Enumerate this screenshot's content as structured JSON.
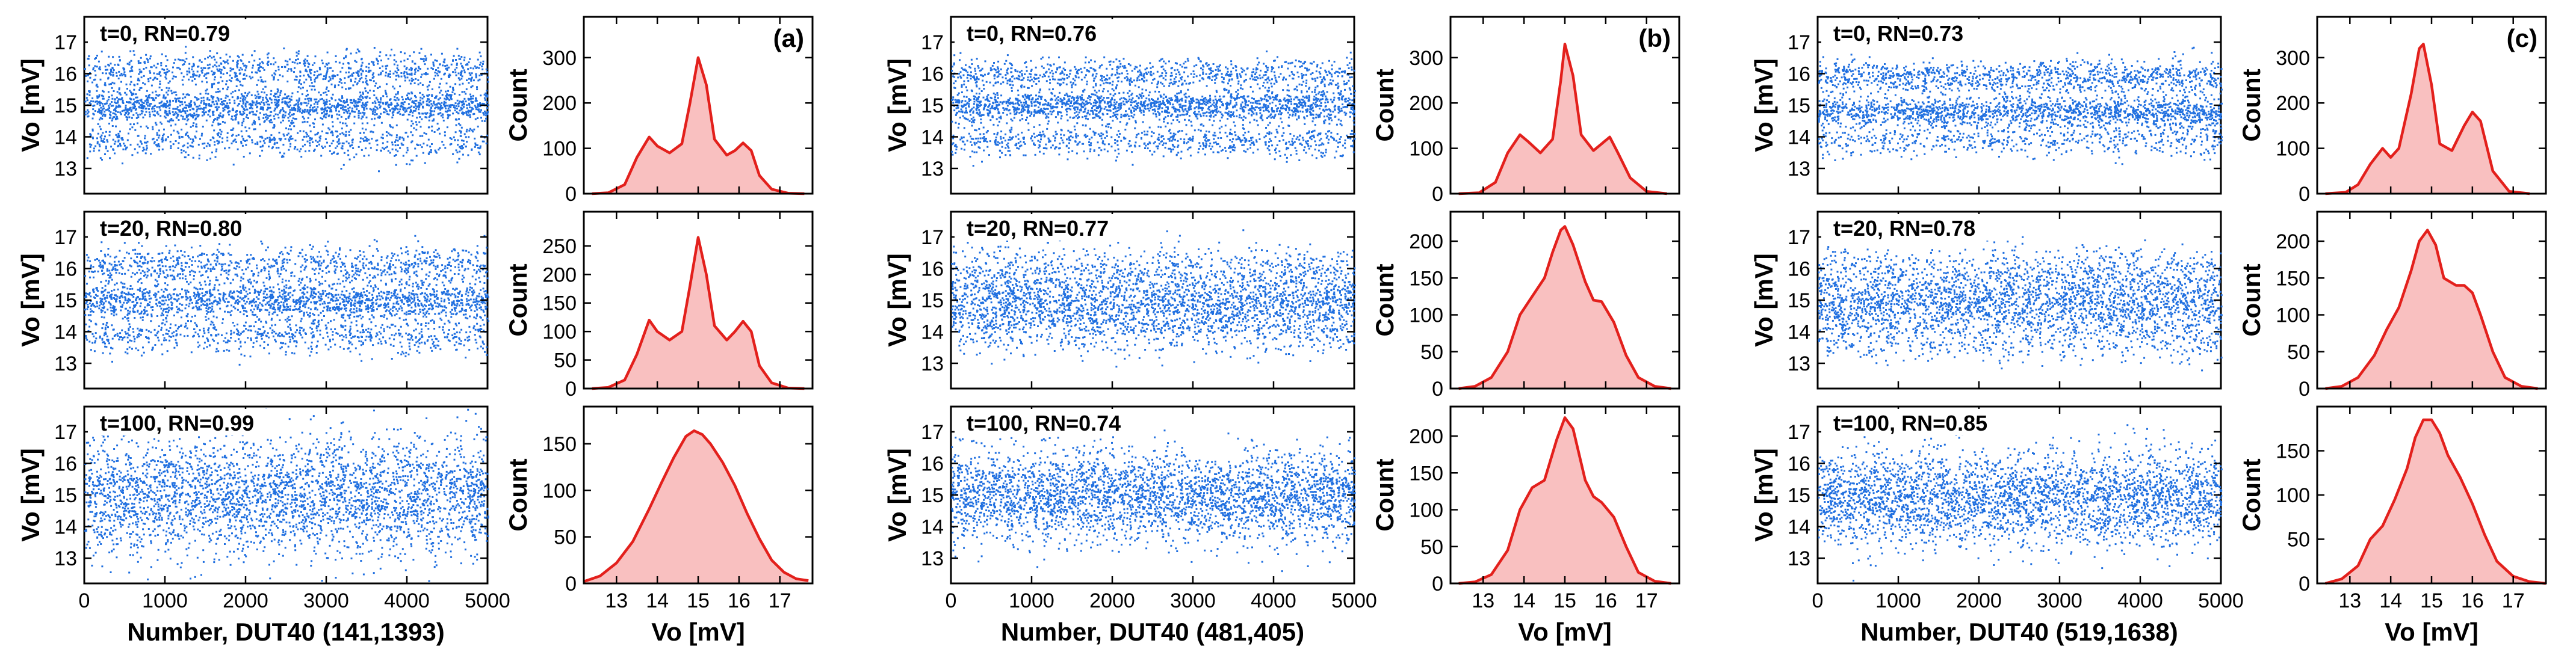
{
  "figure": {
    "groups": [
      {
        "panel_label": "(a)",
        "device_label": "Number, DUT40 (141,1393)"
      },
      {
        "panel_label": "(b)",
        "device_label": "Number, DUT40 (481,405)"
      },
      {
        "panel_label": "(c)",
        "device_label": "Number, DUT40 (519,1638)"
      }
    ],
    "scatter_ylabel": "Vo [mV]",
    "hist_ylabel": "Count",
    "hist_xlabel": "Vo [mV]",
    "colors": {
      "scatter": "#1f6fe0",
      "hist_line": "#e3201c",
      "hist_fill": "#f9c0c0"
    }
  },
  "chart_data": [
    {
      "type": "scatter",
      "group": 0,
      "row": 0,
      "annotation": "t=0, RN=0.79",
      "x_range": [
        0,
        5000
      ],
      "ylim": [
        12.2,
        17.8
      ],
      "y_ticks": [
        13,
        14,
        15,
        16,
        17
      ],
      "x_ticks": [
        0,
        1000,
        2000,
        3000,
        4000,
        5000
      ],
      "levels": [
        13.9,
        15.0,
        16.1
      ],
      "weights": [
        0.22,
        0.5,
        0.28
      ],
      "spread": [
        0.28,
        0.28,
        0.28
      ]
    },
    {
      "type": "scatter",
      "group": 0,
      "row": 1,
      "annotation": "t=20, RN=0.80",
      "x_range": [
        0,
        5000
      ],
      "ylim": [
        12.2,
        17.8
      ],
      "y_ticks": [
        13,
        14,
        15,
        16,
        17
      ],
      "x_ticks": [
        0,
        1000,
        2000,
        3000,
        4000,
        5000
      ],
      "levels": [
        13.9,
        15.0,
        16.1
      ],
      "weights": [
        0.23,
        0.5,
        0.27
      ],
      "spread": [
        0.3,
        0.3,
        0.3
      ]
    },
    {
      "type": "scatter",
      "group": 0,
      "row": 2,
      "annotation": "t=100, RN=0.99",
      "x_range": [
        0,
        5000
      ],
      "ylim": [
        12.2,
        17.8
      ],
      "y_ticks": [
        13,
        14,
        15,
        16,
        17
      ],
      "x_ticks": [
        0,
        1000,
        2000,
        3000,
        4000,
        5000
      ],
      "levels": [
        15.0
      ],
      "weights": [
        1.0
      ],
      "spread": [
        0.95
      ]
    },
    {
      "type": "area",
      "group": 0,
      "row": 0,
      "xlim": [
        12.2,
        17.8
      ],
      "x_ticks": [
        13,
        14,
        15,
        16,
        17
      ],
      "ylim": [
        0,
        390
      ],
      "y_ticks": [
        0,
        100,
        200,
        300
      ],
      "x": [
        12.4,
        12.8,
        13.2,
        13.5,
        13.8,
        14.0,
        14.3,
        14.6,
        14.8,
        15.0,
        15.2,
        15.4,
        15.7,
        15.9,
        16.1,
        16.3,
        16.5,
        16.8,
        17.2,
        17.6
      ],
      "y": [
        0,
        2,
        20,
        80,
        125,
        105,
        90,
        110,
        200,
        300,
        240,
        120,
        85,
        95,
        112,
        95,
        40,
        10,
        1,
        0
      ]
    },
    {
      "type": "area",
      "group": 0,
      "row": 1,
      "xlim": [
        12.2,
        17.8
      ],
      "x_ticks": [
        13,
        14,
        15,
        16,
        17
      ],
      "ylim": [
        0,
        310
      ],
      "y_ticks": [
        0,
        50,
        100,
        150,
        200,
        250
      ],
      "x": [
        12.4,
        12.8,
        13.2,
        13.5,
        13.8,
        14.0,
        14.3,
        14.6,
        14.8,
        15.0,
        15.2,
        15.4,
        15.7,
        15.9,
        16.1,
        16.3,
        16.5,
        16.8,
        17.2,
        17.6
      ],
      "y": [
        0,
        2,
        15,
        60,
        120,
        100,
        85,
        100,
        180,
        265,
        200,
        110,
        85,
        100,
        118,
        100,
        40,
        10,
        1,
        0
      ]
    },
    {
      "type": "area",
      "group": 0,
      "row": 2,
      "xlim": [
        12.2,
        17.8
      ],
      "x_ticks": [
        13,
        14,
        15,
        16,
        17
      ],
      "ylim": [
        0,
        190
      ],
      "y_ticks": [
        0,
        50,
        100,
        150
      ],
      "x": [
        12.2,
        12.6,
        13.0,
        13.4,
        13.8,
        14.1,
        14.4,
        14.7,
        14.9,
        15.1,
        15.3,
        15.6,
        15.9,
        16.2,
        16.5,
        16.8,
        17.1,
        17.4,
        17.7
      ],
      "y": [
        2,
        8,
        22,
        45,
        80,
        108,
        135,
        158,
        164,
        160,
        150,
        130,
        105,
        75,
        48,
        25,
        12,
        5,
        3
      ]
    },
    {
      "type": "scatter",
      "group": 1,
      "row": 0,
      "annotation": "t=0, RN=0.76",
      "x_range": [
        0,
        5000
      ],
      "ylim": [
        12.2,
        17.8
      ],
      "y_ticks": [
        13,
        14,
        15,
        16,
        17
      ],
      "x_ticks": [
        0,
        1000,
        2000,
        3000,
        4000,
        5000
      ],
      "levels": [
        13.9,
        15.0,
        16.0
      ],
      "weights": [
        0.23,
        0.52,
        0.25
      ],
      "spread": [
        0.25,
        0.25,
        0.25
      ]
    },
    {
      "type": "scatter",
      "group": 1,
      "row": 1,
      "annotation": "t=20, RN=0.77",
      "x_range": [
        0,
        5000
      ],
      "ylim": [
        12.2,
        17.8
      ],
      "y_ticks": [
        13,
        14,
        15,
        16,
        17
      ],
      "x_ticks": [
        0,
        1000,
        2000,
        3000,
        4000,
        5000
      ],
      "levels": [
        14.2,
        15.0,
        15.9
      ],
      "weights": [
        0.3,
        0.45,
        0.25
      ],
      "spread": [
        0.45,
        0.4,
        0.45
      ]
    },
    {
      "type": "scatter",
      "group": 1,
      "row": 2,
      "annotation": "t=100, RN=0.74",
      "x_range": [
        0,
        5000
      ],
      "ylim": [
        12.2,
        17.8
      ],
      "y_ticks": [
        13,
        14,
        15,
        16,
        17
      ],
      "x_ticks": [
        0,
        1000,
        2000,
        3000,
        4000,
        5000
      ],
      "levels": [
        15.0
      ],
      "weights": [
        1.0
      ],
      "spread": [
        0.7
      ]
    },
    {
      "type": "area",
      "group": 1,
      "row": 0,
      "xlim": [
        12.2,
        17.8
      ],
      "x_ticks": [
        13,
        14,
        15,
        16,
        17
      ],
      "ylim": [
        0,
        390
      ],
      "y_ticks": [
        0,
        100,
        200,
        300
      ],
      "x": [
        12.4,
        12.9,
        13.3,
        13.6,
        13.9,
        14.1,
        14.4,
        14.7,
        14.9,
        15.0,
        15.2,
        15.4,
        15.7,
        15.9,
        16.1,
        16.3,
        16.6,
        17.0,
        17.5
      ],
      "y": [
        0,
        2,
        25,
        90,
        130,
        115,
        90,
        120,
        250,
        330,
        260,
        130,
        95,
        110,
        125,
        90,
        35,
        5,
        0
      ]
    },
    {
      "type": "area",
      "group": 1,
      "row": 1,
      "xlim": [
        12.2,
        17.8
      ],
      "x_ticks": [
        13,
        14,
        15,
        16,
        17
      ],
      "ylim": [
        0,
        240
      ],
      "y_ticks": [
        0,
        50,
        100,
        150,
        200
      ],
      "x": [
        12.4,
        12.8,
        13.2,
        13.6,
        13.9,
        14.2,
        14.5,
        14.7,
        14.9,
        15.0,
        15.2,
        15.5,
        15.7,
        15.9,
        16.2,
        16.5,
        16.8,
        17.2,
        17.6
      ],
      "y": [
        0,
        3,
        15,
        50,
        100,
        125,
        150,
        185,
        215,
        220,
        195,
        145,
        120,
        118,
        90,
        45,
        15,
        3,
        0
      ]
    },
    {
      "type": "area",
      "group": 1,
      "row": 2,
      "xlim": [
        12.2,
        17.8
      ],
      "x_ticks": [
        13,
        14,
        15,
        16,
        17
      ],
      "ylim": [
        0,
        240
      ],
      "y_ticks": [
        0,
        50,
        100,
        150,
        200
      ],
      "x": [
        12.4,
        12.8,
        13.2,
        13.6,
        13.9,
        14.2,
        14.5,
        14.8,
        15.0,
        15.2,
        15.5,
        15.7,
        15.9,
        16.2,
        16.5,
        16.8,
        17.2,
        17.6
      ],
      "y": [
        0,
        2,
        12,
        45,
        100,
        130,
        140,
        195,
        225,
        210,
        140,
        118,
        110,
        90,
        50,
        15,
        3,
        0
      ]
    },
    {
      "type": "scatter",
      "group": 2,
      "row": 0,
      "annotation": "t=0, RN=0.73",
      "x_range": [
        0,
        5000
      ],
      "ylim": [
        12.2,
        17.8
      ],
      "y_ticks": [
        13,
        14,
        15,
        16,
        17
      ],
      "x_ticks": [
        0,
        1000,
        2000,
        3000,
        4000,
        5000
      ],
      "levels": [
        13.9,
        14.8,
        15.9
      ],
      "weights": [
        0.17,
        0.5,
        0.33
      ],
      "spread": [
        0.25,
        0.25,
        0.25
      ]
    },
    {
      "type": "scatter",
      "group": 2,
      "row": 1,
      "annotation": "t=20, RN=0.78",
      "x_range": [
        0,
        5000
      ],
      "ylim": [
        12.2,
        17.8
      ],
      "y_ticks": [
        13,
        14,
        15,
        16,
        17
      ],
      "x_ticks": [
        0,
        1000,
        2000,
        3000,
        4000,
        5000
      ],
      "levels": [
        14.0,
        14.9,
        15.8
      ],
      "weights": [
        0.25,
        0.45,
        0.3
      ],
      "spread": [
        0.45,
        0.4,
        0.45
      ]
    },
    {
      "type": "scatter",
      "group": 2,
      "row": 2,
      "annotation": "t=100, RN=0.85",
      "x_range": [
        0,
        5000
      ],
      "ylim": [
        12.2,
        17.8
      ],
      "y_ticks": [
        13,
        14,
        15,
        16,
        17
      ],
      "x_ticks": [
        0,
        1000,
        2000,
        3000,
        4000,
        5000
      ],
      "levels": [
        14.9
      ],
      "weights": [
        1.0
      ],
      "spread": [
        0.72
      ]
    },
    {
      "type": "area",
      "group": 2,
      "row": 0,
      "xlim": [
        12.2,
        17.8
      ],
      "x_ticks": [
        13,
        14,
        15,
        16,
        17
      ],
      "ylim": [
        0,
        390
      ],
      "y_ticks": [
        0,
        100,
        200,
        300
      ],
      "x": [
        12.4,
        12.9,
        13.2,
        13.5,
        13.8,
        14.0,
        14.2,
        14.5,
        14.7,
        14.8,
        15.0,
        15.2,
        15.5,
        15.8,
        16.0,
        16.2,
        16.5,
        16.9,
        17.4
      ],
      "y": [
        0,
        3,
        20,
        65,
        100,
        80,
        100,
        220,
        320,
        330,
        240,
        110,
        95,
        150,
        180,
        160,
        50,
        5,
        0
      ]
    },
    {
      "type": "area",
      "group": 2,
      "row": 1,
      "xlim": [
        12.2,
        17.8
      ],
      "x_ticks": [
        13,
        14,
        15,
        16,
        17
      ],
      "ylim": [
        0,
        240
      ],
      "y_ticks": [
        0,
        50,
        100,
        150,
        200
      ],
      "x": [
        12.4,
        12.8,
        13.2,
        13.6,
        13.9,
        14.2,
        14.5,
        14.7,
        14.9,
        15.1,
        15.3,
        15.6,
        15.8,
        16.0,
        16.2,
        16.5,
        16.8,
        17.2,
        17.6
      ],
      "y": [
        0,
        3,
        15,
        45,
        80,
        110,
        160,
        200,
        215,
        195,
        150,
        140,
        140,
        130,
        100,
        50,
        15,
        3,
        0
      ]
    },
    {
      "type": "area",
      "group": 2,
      "row": 2,
      "xlim": [
        12.2,
        17.8
      ],
      "x_ticks": [
        13,
        14,
        15,
        16,
        17
      ],
      "ylim": [
        0,
        200
      ],
      "y_ticks": [
        0,
        50,
        100,
        150
      ],
      "x": [
        12.4,
        12.8,
        13.2,
        13.5,
        13.8,
        14.1,
        14.4,
        14.6,
        14.8,
        15.0,
        15.2,
        15.4,
        15.7,
        16.0,
        16.3,
        16.6,
        17.0,
        17.4,
        17.8
      ],
      "y": [
        0,
        5,
        20,
        50,
        65,
        95,
        130,
        165,
        185,
        185,
        170,
        145,
        120,
        90,
        55,
        25,
        8,
        2,
        0
      ]
    }
  ]
}
